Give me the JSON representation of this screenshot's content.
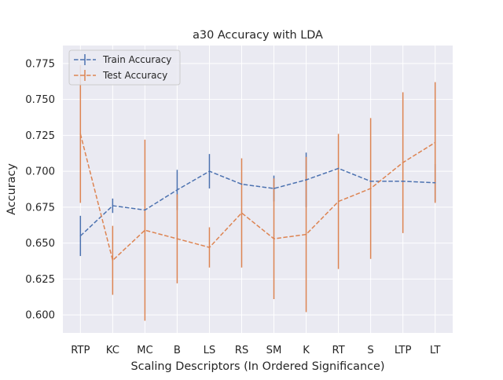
{
  "chart_data": {
    "type": "line",
    "title": "a30 Accuracy with LDA",
    "xlabel": "Scaling Descriptors (In Ordered Significance)",
    "ylabel": "Accuracy",
    "categories": [
      "RTP",
      "KC",
      "MC",
      "B",
      "LS",
      "RS",
      "SM",
      "K",
      "RT",
      "S",
      "LTP",
      "LT"
    ],
    "ylim": [
      0.5875,
      0.7875
    ],
    "yticks": [
      0.6,
      0.625,
      0.65,
      0.675,
      0.7,
      0.725,
      0.75,
      0.775
    ],
    "ytick_labels": [
      "0.600",
      "0.625",
      "0.650",
      "0.675",
      "0.700",
      "0.725",
      "0.750",
      "0.775"
    ],
    "grid": true,
    "legend_position": "top-left",
    "series": [
      {
        "name": "Train Accuracy",
        "color": "#4c72b0",
        "linestyle": "dashed",
        "values": [
          0.655,
          0.676,
          0.673,
          0.687,
          0.7,
          0.691,
          0.688,
          0.694,
          0.702,
          0.693,
          0.693,
          0.692
        ],
        "errors": [
          0.014,
          0.005,
          0.0,
          0.014,
          0.012,
          0.0,
          0.009,
          0.019,
          0.0,
          0.0,
          0.0,
          0.013
        ]
      },
      {
        "name": "Test Accuracy",
        "color": "#dd8452",
        "linestyle": "dashed",
        "values": [
          0.726,
          0.638,
          0.659,
          0.653,
          0.647,
          0.671,
          0.653,
          0.656,
          0.679,
          0.688,
          0.706,
          0.72
        ],
        "errors": [
          0.048,
          0.024,
          0.063,
          0.031,
          0.014,
          0.038,
          0.042,
          0.054,
          0.047,
          0.049,
          0.049,
          0.042
        ]
      }
    ]
  }
}
